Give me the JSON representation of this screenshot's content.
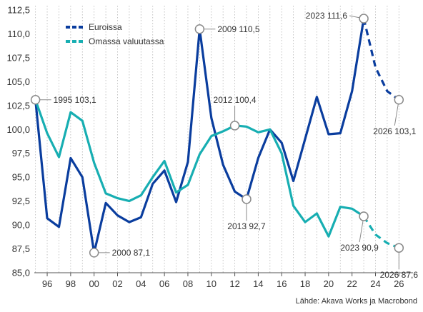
{
  "chart_data": {
    "type": "line",
    "title": "",
    "xlabel": "",
    "ylabel": "",
    "ylim": [
      85.0,
      112.5
    ],
    "y_ticks": [
      "112,5",
      "110,0",
      "107,5",
      "105,0",
      "102,5",
      "100,0",
      "97,5",
      "95,0",
      "92,5",
      "90,0",
      "87,5",
      "85,0"
    ],
    "y_tick_values": [
      112.5,
      110.0,
      107.5,
      105.0,
      102.5,
      100.0,
      97.5,
      95.0,
      92.5,
      90.0,
      87.5,
      85.0
    ],
    "x_ticks": [
      "96",
      "98",
      "00",
      "02",
      "04",
      "06",
      "08",
      "10",
      "12",
      "14",
      "16",
      "18",
      "20",
      "22",
      "24",
      "26"
    ],
    "x_tick_years": [
      1996,
      1998,
      2000,
      2002,
      2004,
      2006,
      2008,
      2010,
      2012,
      2014,
      2016,
      2018,
      2020,
      2022,
      2024,
      2026
    ],
    "grid": "vertical dotted",
    "legend_position": "top-left",
    "forecast_from": 2023,
    "series": [
      {
        "name": "Euroissa",
        "color": "#0a3d9e",
        "x": [
          1995,
          1996,
          1997,
          1998,
          1999,
          2000,
          2001,
          2002,
          2003,
          2004,
          2005,
          2006,
          2007,
          2008,
          2009,
          2010,
          2011,
          2012,
          2013,
          2014,
          2015,
          2016,
          2017,
          2018,
          2019,
          2020,
          2021,
          2022,
          2023,
          2024,
          2025,
          2026
        ],
        "values": [
          103.1,
          90.7,
          89.8,
          97.0,
          95.0,
          87.1,
          92.3,
          91.0,
          90.3,
          90.8,
          94.3,
          95.7,
          92.4,
          96.6,
          110.5,
          101.2,
          96.3,
          93.5,
          92.7,
          97.0,
          100.0,
          98.6,
          94.6,
          99.0,
          103.4,
          99.5,
          99.6,
          104.0,
          111.6,
          106.5,
          104.0,
          103.1
        ]
      },
      {
        "name": "Omassa valuutassa",
        "color": "#17aeb2",
        "x": [
          1995,
          1996,
          1997,
          1998,
          1999,
          2000,
          2001,
          2002,
          2003,
          2004,
          2005,
          2006,
          2007,
          2008,
          2009,
          2010,
          2011,
          2012,
          2013,
          2014,
          2015,
          2016,
          2017,
          2018,
          2019,
          2020,
          2021,
          2022,
          2023,
          2024,
          2025,
          2026
        ],
        "values": [
          103.1,
          99.6,
          97.1,
          101.8,
          100.9,
          96.5,
          93.3,
          92.8,
          92.5,
          93.1,
          95.0,
          96.7,
          93.4,
          94.2,
          97.4,
          99.3,
          99.8,
          100.4,
          100.3,
          99.7,
          100.0,
          97.5,
          92.0,
          90.3,
          91.2,
          88.8,
          91.9,
          91.7,
          90.9,
          89.0,
          88.1,
          87.6
        ]
      }
    ],
    "annotations": [
      {
        "text": "1995 103,1",
        "x": 1995,
        "y": 103.1,
        "anchor": "right"
      },
      {
        "text": "2000 87,1",
        "x": 2000,
        "y": 87.1,
        "anchor": "right"
      },
      {
        "text": "2009 110,5",
        "x": 2009,
        "y": 110.5,
        "anchor": "right"
      },
      {
        "text": "2012 100,4",
        "x": 2012,
        "y": 100.4,
        "anchor": "above"
      },
      {
        "text": "2013 92,7",
        "x": 2013,
        "y": 92.7,
        "anchor": "below"
      },
      {
        "text": "2023 111,6",
        "x": 2023,
        "y": 111.6,
        "anchor": "left"
      },
      {
        "text": "2026 103,1",
        "x": 2026,
        "y": 103.1,
        "anchor": "below-left"
      },
      {
        "text": "2023 90,9",
        "x": 2023,
        "y": 90.9,
        "anchor": "below-left"
      },
      {
        "text": "2026 87,6",
        "x": 2026,
        "y": 87.6,
        "anchor": "below"
      }
    ],
    "source": "Lähde: Akava Works ja Macrobond"
  }
}
